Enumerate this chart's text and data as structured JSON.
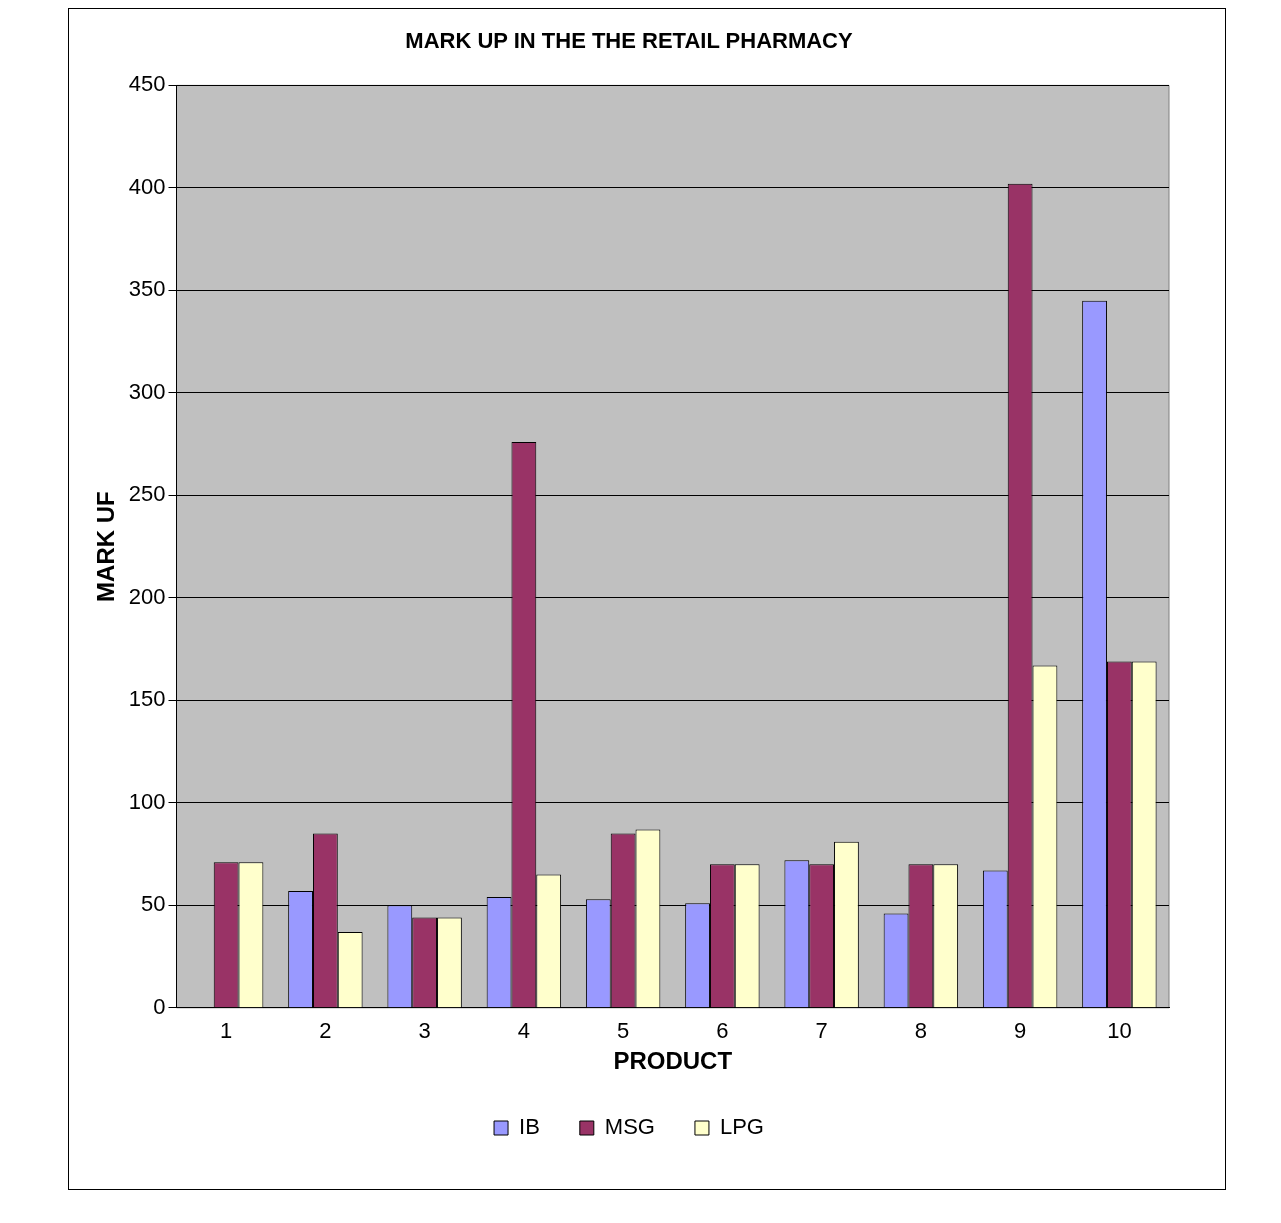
{
  "chart_data": {
    "type": "bar",
    "title": "MARK UP IN THE THE RETAIL PHARMACY",
    "xlabel": "PRODUCT",
    "ylabel": "MARK UF",
    "categories": [
      "1",
      "2",
      "3",
      "4",
      "5",
      "6",
      "7",
      "8",
      "9",
      "10"
    ],
    "series": [
      {
        "name": "IB",
        "color": "#9999ff",
        "values": [
          null,
          57,
          50,
          54,
          53,
          51,
          72,
          46,
          67,
          345
        ]
      },
      {
        "name": "MSG",
        "color": "#993366",
        "values": [
          71,
          85,
          44,
          276,
          85,
          70,
          70,
          70,
          402,
          169
        ]
      },
      {
        "name": "LPG",
        "color": "#ffffcc",
        "values": [
          71,
          37,
          44,
          65,
          87,
          70,
          81,
          70,
          167,
          169
        ]
      }
    ],
    "ylim": [
      0,
      450
    ],
    "yticks": [
      0,
      50,
      100,
      150,
      200,
      250,
      300,
      350,
      400,
      450
    ],
    "grid": "y",
    "legend": "bottom"
  }
}
